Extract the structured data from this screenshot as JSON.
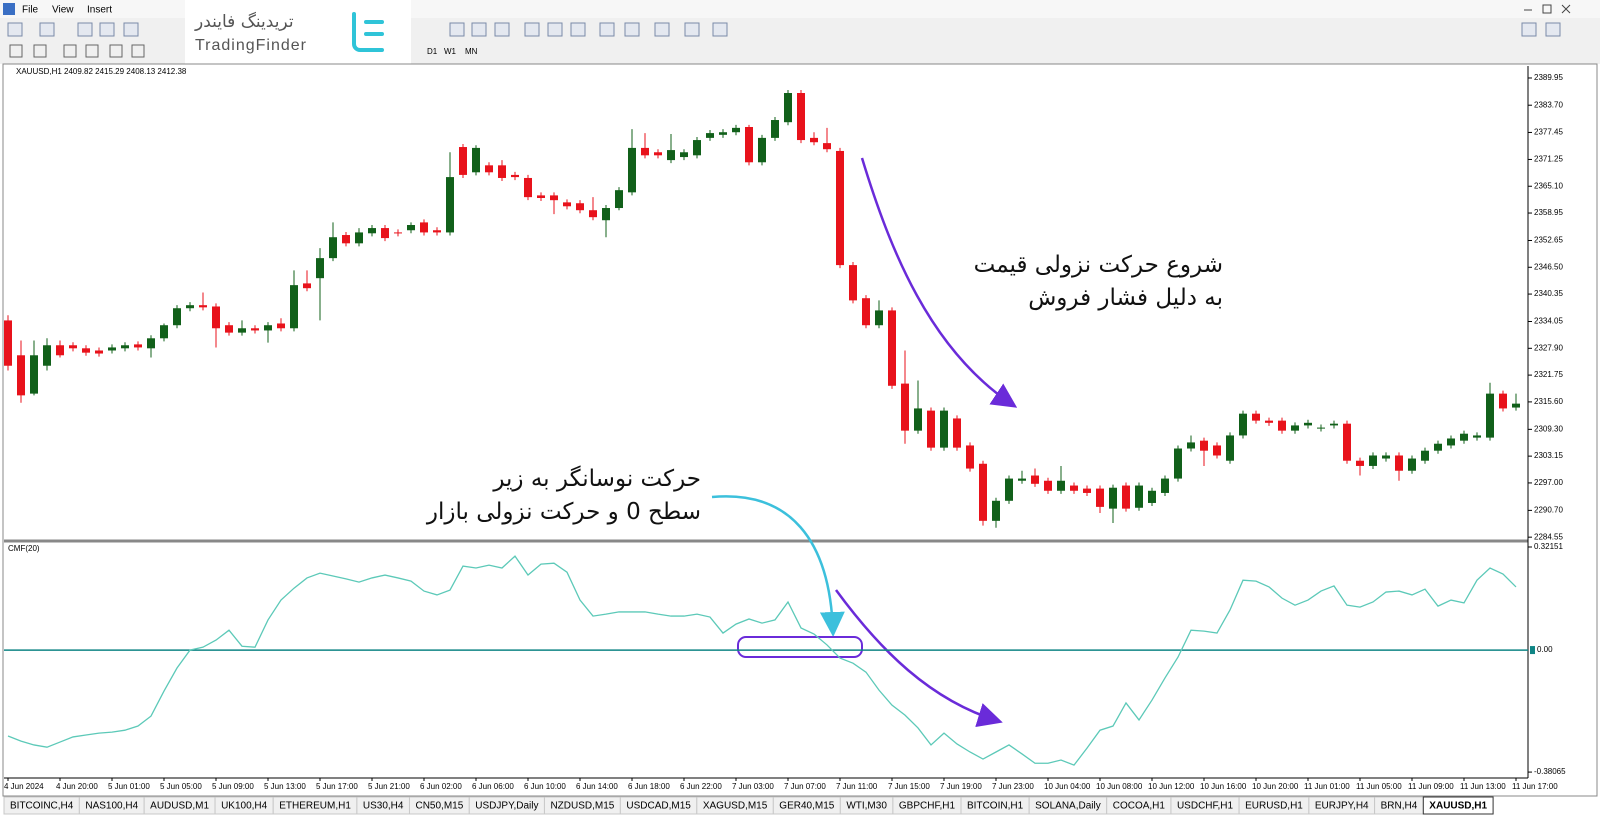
{
  "menu": [
    "File",
    "View",
    "Insert"
  ],
  "logo": {
    "fa": "تریدینگ فایندر",
    "en": "TradingFinder"
  },
  "timeframes": [
    "D1",
    "W1",
    "MN"
  ],
  "chart_data": [
    {
      "type": "candlestick",
      "title": "XAUUSD,H1  2409.82 2415.29 2408.13 2412.38",
      "up_color": "#11601a",
      "down_color": "#e8121b",
      "ylim": [
        2283.9,
        2392.7
      ],
      "yticks": [
        {
          "value": 2389.95,
          "label": "2389.95"
        },
        {
          "value": 2383.7,
          "label": "2383.70"
        },
        {
          "value": 2377.45,
          "label": "2377.45"
        },
        {
          "value": 2371.25,
          "label": "2371.25"
        },
        {
          "value": 2365.1,
          "label": "2365.10"
        },
        {
          "value": 2358.95,
          "label": "2358.95"
        },
        {
          "value": 2352.65,
          "label": "2352.65"
        },
        {
          "value": 2346.5,
          "label": "2346.50"
        },
        {
          "value": 2340.35,
          "label": "2340.35"
        },
        {
          "value": 2334.05,
          "label": "2334.05"
        },
        {
          "value": 2327.9,
          "label": "2327.90"
        },
        {
          "value": 2321.75,
          "label": "2321.75"
        },
        {
          "value": 2315.6,
          "label": "2315.60"
        },
        {
          "value": 2309.3,
          "label": "2309.30"
        },
        {
          "value": 2303.15,
          "label": "2303.15"
        },
        {
          "value": 2297,
          "label": "2297.00"
        },
        {
          "value": 2290.7,
          "label": "2290.70"
        },
        {
          "value": 2284.55,
          "label": "2284.55"
        }
      ],
      "open": [
        2334.3,
        2326.3,
        2317.5,
        2323.9,
        2328.6,
        2328.6,
        2327.9,
        2327.4,
        2327.4,
        2327.9,
        2328.8,
        2327.9,
        2330.2,
        2333.2,
        2337.1,
        2337.8,
        2337.5,
        2333.2,
        2331.5,
        2332.5,
        2332.0,
        2333.6,
        2332.5,
        2342.8,
        2344.0,
        2348.6,
        2353.9,
        2352.0,
        2354.3,
        2355.5,
        2354.5,
        2355.0,
        2356.8,
        2355.0,
        2354.5,
        2374.1,
        2368.3,
        2369.9,
        2369.9,
        2367.7,
        2367.0,
        2363.0,
        2363.0,
        2361.4,
        2361.2,
        2359.6,
        2357.3,
        2360.1,
        2363.7,
        2373.9,
        2372.9,
        2371.1,
        2371.8,
        2372.2,
        2376.2,
        2376.9,
        2377.5,
        2378.7,
        2370.6,
        2376.2,
        2379.8,
        2386.5,
        2376.2,
        2375.0,
        2373.2,
        2347.0,
        2339.4,
        2333.2,
        2336.6,
        2319.8,
        2309.0,
        2313.6,
        2305.1,
        2311.8,
        2305.6,
        2301.4,
        2288.3,
        2292.9,
        2297.5,
        2298.7,
        2297.5,
        2295.2,
        2296.4,
        2295.7,
        2295.7,
        2291.1,
        2296.4,
        2291.3,
        2292.4,
        2294.7,
        2298.0,
        2304.9,
        2306.7,
        2305.6,
        2302.1,
        2307.9,
        2312.9,
        2311.3,
        2311.3,
        2309.0,
        2310.2,
        2309.5,
        2310.2,
        2310.6,
        2302.1,
        2300.9,
        2302.6,
        2303.3,
        2299.8,
        2302.1,
        2304.4,
        2305.6,
        2306.7,
        2307.4,
        2307.4,
        2317.5,
        2314.3
      ],
      "high": [
        2335.5,
        2329.7,
        2329.7,
        2330.2,
        2329.7,
        2329.3,
        2328.6,
        2328.1,
        2328.8,
        2329.3,
        2329.5,
        2330.9,
        2333.6,
        2337.8,
        2338.5,
        2340.7,
        2338.2,
        2333.9,
        2334.3,
        2333.2,
        2333.9,
        2334.8,
        2345.8,
        2345.8,
        2350.9,
        2356.8,
        2354.6,
        2355.5,
        2356.2,
        2356.2,
        2355.2,
        2356.8,
        2357.5,
        2355.7,
        2372.9,
        2374.8,
        2374.5,
        2370.6,
        2371.1,
        2368.4,
        2367.7,
        2363.7,
        2363.7,
        2362.1,
        2361.9,
        2362.6,
        2360.8,
        2364.9,
        2378.2,
        2377.3,
        2373.6,
        2377.1,
        2373.6,
        2376.4,
        2378.0,
        2378.2,
        2379.2,
        2379.2,
        2376.9,
        2381.0,
        2387.2,
        2387.2,
        2377.5,
        2378.5,
        2373.9,
        2347.7,
        2340.1,
        2338.9,
        2337.3,
        2327.4,
        2320.5,
        2314.3,
        2314.3,
        2312.5,
        2306.3,
        2302.1,
        2293.6,
        2298.7,
        2299.8,
        2300.3,
        2298.2,
        2300.9,
        2297.1,
        2296.4,
        2296.4,
        2296.6,
        2297.1,
        2297.1,
        2295.9,
        2298.7,
        2305.6,
        2307.9,
        2307.4,
        2306.3,
        2308.6,
        2313.6,
        2313.6,
        2312.0,
        2312.0,
        2310.9,
        2311.5,
        2310.4,
        2311.3,
        2311.3,
        2302.8,
        2304.0,
        2304.0,
        2304.0,
        2303.3,
        2305.1,
        2306.7,
        2307.9,
        2309.0,
        2308.6,
        2320.0,
        2318.2,
        2317.5
      ],
      "low": [
        2322.8,
        2315.4,
        2317.1,
        2322.8,
        2325.8,
        2327.2,
        2326.2,
        2326.0,
        2326.7,
        2327.2,
        2327.4,
        2325.8,
        2329.5,
        2332.5,
        2336.4,
        2336.6,
        2328.1,
        2330.8,
        2330.8,
        2331.3,
        2329.2,
        2331.8,
        2331.8,
        2341.0,
        2334.3,
        2347.9,
        2351.3,
        2351.3,
        2353.6,
        2352.5,
        2353.6,
        2354.3,
        2353.8,
        2353.8,
        2353.8,
        2367.0,
        2367.6,
        2367.6,
        2366.3,
        2366.5,
        2361.9,
        2361.7,
        2358.7,
        2359.8,
        2358.9,
        2357.3,
        2353.4,
        2359.6,
        2363.0,
        2371.5,
        2371.5,
        2370.4,
        2371.1,
        2371.5,
        2375.5,
        2376.2,
        2376.8,
        2369.9,
        2369.9,
        2375.5,
        2379.1,
        2375.0,
        2374.5,
        2372.9,
        2346.3,
        2338.2,
        2332.5,
        2332.5,
        2318.6,
        2306.0,
        2308.3,
        2304.4,
        2304.4,
        2304.4,
        2299.6,
        2287.2,
        2286.7,
        2292.2,
        2296.8,
        2296.1,
        2294.5,
        2294.5,
        2294.5,
        2294.0,
        2290.1,
        2287.8,
        2290.4,
        2290.6,
        2291.7,
        2294.0,
        2297.3,
        2304.2,
        2300.9,
        2302.6,
        2301.4,
        2307.2,
        2310.6,
        2310.1,
        2308.3,
        2308.3,
        2309.5,
        2308.8,
        2309.5,
        2301.4,
        2298.7,
        2300.2,
        2301.9,
        2297.5,
        2299.1,
        2301.4,
        2303.7,
        2304.9,
        2306.0,
        2306.7,
        2306.7,
        2313.4,
        2313.6
      ],
      "close": [
        2323.9,
        2317.1,
        2326.3,
        2328.6,
        2326.3,
        2327.9,
        2326.9,
        2326.7,
        2328.1,
        2328.6,
        2328.1,
        2330.2,
        2333.2,
        2337.1,
        2337.8,
        2337.3,
        2332.5,
        2331.5,
        2332.5,
        2332.0,
        2333.2,
        2332.5,
        2342.4,
        2341.7,
        2348.6,
        2353.4,
        2352.0,
        2354.5,
        2355.5,
        2353.2,
        2354.3,
        2356.2,
        2354.5,
        2354.5,
        2367.2,
        2367.7,
        2373.9,
        2368.3,
        2367.0,
        2367.2,
        2362.6,
        2362.4,
        2361.9,
        2360.5,
        2359.6,
        2358.0,
        2360.1,
        2364.2,
        2373.9,
        2372.2,
        2372.2,
        2373.4,
        2372.9,
        2375.7,
        2377.3,
        2377.5,
        2378.5,
        2370.6,
        2376.2,
        2380.3,
        2386.5,
        2375.7,
        2375.2,
        2373.6,
        2347.0,
        2338.9,
        2333.2,
        2336.6,
        2319.3,
        2309.0,
        2314.1,
        2305.1,
        2313.6,
        2305.1,
        2300.3,
        2288.3,
        2292.9,
        2298.0,
        2298.0,
        2296.8,
        2295.2,
        2297.5,
        2295.2,
        2294.7,
        2291.5,
        2295.9,
        2291.1,
        2296.4,
        2295.2,
        2298.0,
        2304.9,
        2306.3,
        2304.4,
        2303.3,
        2307.9,
        2312.9,
        2311.3,
        2310.8,
        2309.0,
        2310.2,
        2310.8,
        2309.7,
        2310.6,
        2302.1,
        2300.9,
        2303.3,
        2303.3,
        2299.8,
        2302.6,
        2304.4,
        2306.0,
        2307.2,
        2308.3,
        2307.9,
        2317.5,
        2314.1,
        2315.2
      ]
    },
    {
      "type": "line",
      "title": "CMF(20)",
      "color": "#5cc9b8",
      "level_color": "#0f8585",
      "ylim": [
        -0.396,
        0.334
      ],
      "yticks": [
        0.32151,
        -0.38065
      ],
      "levels": [
        {
          "value": 0,
          "label": "0.00"
        }
      ],
      "categories": [
        "4 Jun 2024",
        null,
        null,
        null,
        "4 Jun 20:00",
        null,
        null,
        null,
        "5 Jun 01:00",
        null,
        null,
        null,
        "5 Jun 05:00",
        null,
        null,
        null,
        "5 Jun 09:00",
        null,
        null,
        null,
        "5 Jun 13:00",
        null,
        null,
        null,
        "5 Jun 17:00",
        null,
        null,
        null,
        "5 Jun 21:00",
        null,
        null,
        null,
        "6 Jun 02:00",
        null,
        null,
        null,
        "6 Jun 06:00",
        null,
        null,
        null,
        "6 Jun 10:00",
        null,
        null,
        null,
        "6 Jun 14:00",
        null,
        null,
        null,
        "6 Jun 18:00",
        null,
        null,
        null,
        "6 Jun 22:00",
        null,
        null,
        null,
        "7 Jun 03:00",
        null,
        null,
        null,
        "7 Jun 07:00",
        null,
        null,
        null,
        "7 Jun 11:00",
        null,
        null,
        null,
        "7 Jun 15:00",
        null,
        null,
        null,
        "7 Jun 19:00",
        null,
        null,
        null,
        "7 Jun 23:00",
        null,
        null,
        null,
        "10 Jun 04:00",
        null,
        null,
        null,
        "10 Jun 08:00",
        null,
        null,
        null,
        "10 Jun 12:00",
        null,
        null,
        null,
        "10 Jun 16:00",
        null,
        null,
        null,
        "10 Jun 20:00",
        null,
        null,
        null,
        "11 Jun 01:00",
        null,
        null,
        null,
        "11 Jun 05:00",
        null,
        null,
        null,
        "11 Jun 09:00",
        null,
        null,
        null,
        "11 Jun 13:00",
        null,
        null,
        null,
        "11 Jun 17:00"
      ],
      "values": [
        -0.268,
        -0.284,
        -0.296,
        -0.303,
        -0.287,
        -0.271,
        -0.265,
        -0.259,
        -0.256,
        -0.25,
        -0.237,
        -0.206,
        -0.128,
        -0.056,
        0.0,
        0.009,
        0.031,
        0.062,
        0.012,
        0.009,
        0.094,
        0.156,
        0.193,
        0.225,
        0.24,
        0.231,
        0.222,
        0.212,
        0.225,
        0.234,
        0.225,
        0.215,
        0.184,
        0.172,
        0.187,
        0.262,
        0.256,
        0.265,
        0.256,
        0.293,
        0.234,
        0.268,
        0.271,
        0.243,
        0.156,
        0.106,
        0.112,
        0.119,
        0.119,
        0.119,
        0.112,
        0.106,
        0.106,
        0.112,
        0.103,
        0.053,
        0.081,
        0.097,
        0.084,
        0.094,
        0.15,
        0.069,
        0.05,
        0.016,
        -0.025,
        -0.041,
        -0.069,
        -0.125,
        -0.172,
        -0.203,
        -0.243,
        -0.296,
        -0.259,
        -0.293,
        -0.318,
        -0.34,
        -0.318,
        -0.296,
        -0.324,
        -0.353,
        -0.353,
        -0.343,
        -0.359,
        -0.306,
        -0.25,
        -0.237,
        -0.165,
        -0.218,
        -0.156,
        -0.087,
        -0.022,
        0.062,
        0.059,
        0.053,
        0.125,
        0.218,
        0.215,
        0.197,
        0.162,
        0.14,
        0.156,
        0.184,
        0.2,
        0.14,
        0.134,
        0.15,
        0.181,
        0.184,
        0.172,
        0.19,
        0.137,
        0.156,
        0.147,
        0.218,
        0.256,
        0.237,
        0.197
      ]
    }
  ],
  "annotations": [
    {
      "lines": [
        "شروع حرکت نزولی قیمت",
        "به دلیل فشار فروش"
      ]
    },
    {
      "lines": [
        "حرکت نوسانگر به زیر",
        "سطح 0 و حرکت نزولی بازار"
      ]
    }
  ],
  "tabs": [
    "BITCOINC,H4",
    "NAS100,H4",
    "AUDUSD,M1",
    "UK100,H4",
    "ETHEREUM,H1",
    "US30,H4",
    "CN50,M15",
    "USDJPY,Daily",
    "NZDUSD,M15",
    "USDCAD,M15",
    "XAGUSD,M15",
    "GER40,M15",
    "WTI,M30",
    "GBPCHF,H1",
    "BITCOIN,H1",
    "SOLANA,Daily",
    "COCOA,H1",
    "USDCHF,H1",
    "EURUSD,H1",
    "EURJPY,H4",
    "BRN,H4",
    "XAUUSD,H1"
  ]
}
